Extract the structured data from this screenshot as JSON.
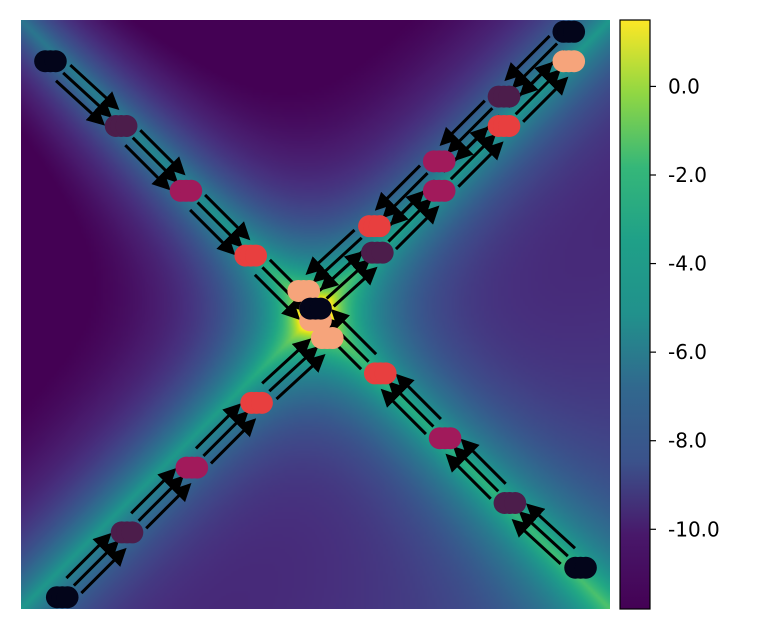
{
  "chart_data": {
    "type": "heatmap",
    "title": "",
    "xlabel": "",
    "ylabel": "",
    "xlim": [
      -1,
      1
    ],
    "ylim": [
      -1,
      1
    ],
    "axes_visible": false,
    "background_field": "two crossing diagonal ridges (y = x and y = -x) with peak at center",
    "colormap": "viridis",
    "colorbar": {
      "range": [
        -11.8,
        1.5
      ],
      "ticks": [
        0.0,
        -2.0,
        -4.0,
        -6.0,
        -8.0,
        -10.0
      ],
      "tick_labels": [
        "0.0",
        "-2.0",
        "-4.0",
        "-6.0",
        "-8.0",
        "-10.0"
      ]
    },
    "trajectories": [
      {
        "points": [
          {
            "x": -0.9,
            "y": 0.86
          },
          {
            "x": -0.66,
            "y": 0.64
          },
          {
            "x": -0.44,
            "y": 0.42
          },
          {
            "x": -0.22,
            "y": 0.2
          },
          {
            "x": 0.0,
            "y": -0.02
          }
        ]
      },
      {
        "points": [
          {
            "x": 0.86,
            "y": 0.96
          },
          {
            "x": 0.64,
            "y": 0.74
          },
          {
            "x": 0.42,
            "y": 0.52
          },
          {
            "x": 0.2,
            "y": 0.3
          },
          {
            "x": -0.04,
            "y": 0.08
          }
        ]
      },
      {
        "points": [
          {
            "x": -0.86,
            "y": -0.96
          },
          {
            "x": -0.64,
            "y": -0.74
          },
          {
            "x": -0.42,
            "y": -0.52
          },
          {
            "x": -0.2,
            "y": -0.3
          },
          {
            "x": 0.04,
            "y": -0.08
          }
        ]
      },
      {
        "points": [
          {
            "x": 0.9,
            "y": -0.86
          },
          {
            "x": 0.66,
            "y": -0.64
          },
          {
            "x": 0.44,
            "y": -0.42
          },
          {
            "x": 0.22,
            "y": -0.2
          },
          {
            "x": 0.0,
            "y": 0.02
          }
        ]
      },
      {
        "points": [
          {
            "x": 0.0,
            "y": 0.02
          },
          {
            "x": 0.21,
            "y": 0.21
          },
          {
            "x": 0.42,
            "y": 0.42
          },
          {
            "x": 0.64,
            "y": 0.64
          },
          {
            "x": 0.86,
            "y": 0.86
          }
        ]
      }
    ],
    "step_colors": [
      "#03051a",
      "#4c1d4b",
      "#a11a5b",
      "#e83f3f",
      "#f6a47b"
    ]
  }
}
